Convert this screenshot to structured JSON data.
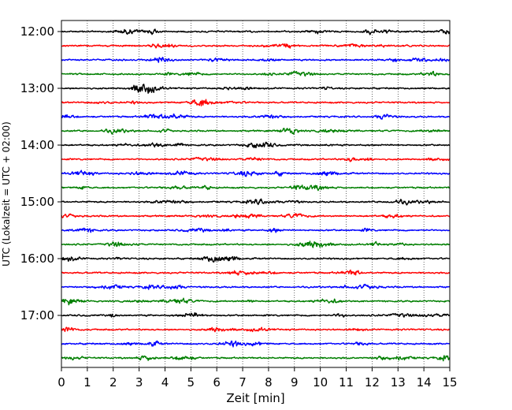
{
  "chart_data": {
    "type": "line",
    "title": "",
    "xlabel": "Zeit  [min]",
    "ylabel": "UTC (Lokalzeit = UTC + 02:00)",
    "xlim": [
      0,
      15
    ],
    "x_ticks": [
      "0",
      "1",
      "2",
      "3",
      "4",
      "5",
      "6",
      "7",
      "8",
      "9",
      "10",
      "11",
      "12",
      "13",
      "14",
      "15"
    ],
    "y_tick_labels": [
      "12:00",
      "13:00",
      "14:00",
      "15:00",
      "16:00",
      "17:00"
    ],
    "grid": "vertical-dotted",
    "trace_colors": [
      "#000000",
      "#ff0000",
      "#0000ff",
      "#007f00"
    ],
    "series": [
      {
        "start_time": "12:00"
      },
      {
        "start_time": "12:15"
      },
      {
        "start_time": "12:30"
      },
      {
        "start_time": "12:45"
      },
      {
        "start_time": "13:00"
      },
      {
        "start_time": "13:15"
      },
      {
        "start_time": "13:30"
      },
      {
        "start_time": "13:45"
      },
      {
        "start_time": "14:00"
      },
      {
        "start_time": "14:15"
      },
      {
        "start_time": "14:30"
      },
      {
        "start_time": "14:45"
      },
      {
        "start_time": "15:00"
      },
      {
        "start_time": "15:15"
      },
      {
        "start_time": "15:30"
      },
      {
        "start_time": "15:45"
      },
      {
        "start_time": "16:00"
      },
      {
        "start_time": "16:15"
      },
      {
        "start_time": "16:30"
      },
      {
        "start_time": "16:45"
      },
      {
        "start_time": "17:00"
      },
      {
        "start_time": "17:15"
      },
      {
        "start_time": "17:30"
      },
      {
        "start_time": "17:45"
      }
    ]
  }
}
